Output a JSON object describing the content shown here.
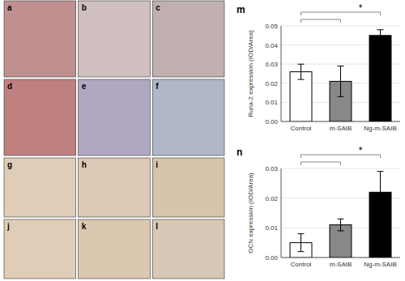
{
  "chart_data": [
    {
      "type": "bar",
      "title": "m",
      "categories": [
        "Control",
        "m-SAIB",
        "Ng-m-SAIB"
      ],
      "values": [
        0.026,
        0.021,
        0.045
      ],
      "errors": [
        0.004,
        0.008,
        0.003
      ],
      "colors": [
        "white",
        "#888888",
        "black"
      ],
      "ylabel": "Runx-2 expression (IOD/Area)",
      "ylim": [
        0.0,
        0.05
      ],
      "yticks": [
        {
          "value": 0,
          "label": "0.00"
        },
        0.01,
        0.02,
        0.03,
        0.04,
        0.05
      ],
      "annotations": [
        "*"
      ]
    },
    {
      "type": "bar",
      "title": "n",
      "categories": [
        "Control",
        "m-SAIB",
        "Ng-m-SAIB"
      ],
      "values": [
        0.005,
        0.011,
        0.022
      ],
      "errors": [
        0.003,
        0.002,
        0.007
      ],
      "colors": [
        "white",
        "#888888",
        "black"
      ],
      "ylabel": "OCN expression (IOD/Area)",
      "ylim": [
        0.0,
        0.03
      ],
      "yticks": [
        {
          "value": 0,
          "label": "0.00"
        },
        0.01,
        0.02,
        0.03
      ],
      "annotations": [
        "*"
      ]
    },
    {
      "type": "image_panels",
      "annotations": [
        "a",
        "b",
        "c",
        "d",
        "e",
        "f",
        "g",
        "h",
        "i",
        "j",
        "k",
        "l"
      ],
      "colors": [
        "#c09090",
        "#d0c0c0",
        "#c0b0b0",
        "#c08080",
        "#b0a8c0",
        "#b0b8c8",
        "#e0cdb8",
        "#ddc8b5",
        "#d8c4aa",
        "#e0cdb8",
        "#dcc8b0",
        "#d8c8b5"
      ]
    }
  ]
}
